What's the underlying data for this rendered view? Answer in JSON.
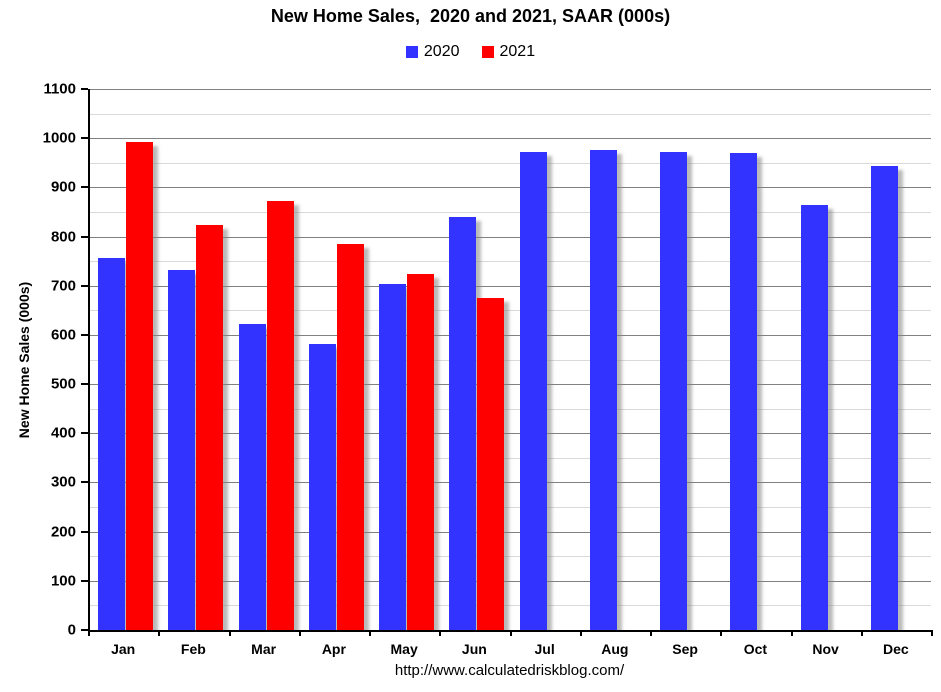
{
  "title": "New Home Sales,  2020 and 2021, SAAR (000s)",
  "footer_url": "http://www.calculatedriskblog.com/",
  "colors": {
    "series_2020": "#3333ff",
    "series_2021": "#ff0000",
    "major_gridline": "#808080",
    "minor_gridline": "#d9d9d9",
    "axis": "#000000"
  },
  "legend": {
    "items": [
      {
        "label": "2020",
        "color": "#3333ff"
      },
      {
        "label": "2021",
        "color": "#ff0000"
      }
    ]
  },
  "chart_data": {
    "type": "bar",
    "title": "New Home Sales,  2020 and 2021, SAAR (000s)",
    "xlabel": "",
    "ylabel": "New Home Sales (000s)",
    "ylim": [
      0,
      1100
    ],
    "ytick_step": 100,
    "minor_gridline_step": 50,
    "grid": true,
    "legend_position": "top",
    "categories": [
      "Jan",
      "Feb",
      "Mar",
      "Apr",
      "May",
      "Jun",
      "Jul",
      "Aug",
      "Sep",
      "Oct",
      "Nov",
      "Dec"
    ],
    "series": [
      {
        "name": "2020",
        "color": "#3333ff",
        "values": [
          756,
          731,
          623,
          582,
          704,
          839,
          972,
          977,
          971,
          969,
          865,
          943
        ]
      },
      {
        "name": "2021",
        "color": "#ff0000",
        "values": [
          993,
          823,
          873,
          785,
          724,
          676,
          null,
          null,
          null,
          null,
          null,
          null
        ]
      }
    ]
  }
}
